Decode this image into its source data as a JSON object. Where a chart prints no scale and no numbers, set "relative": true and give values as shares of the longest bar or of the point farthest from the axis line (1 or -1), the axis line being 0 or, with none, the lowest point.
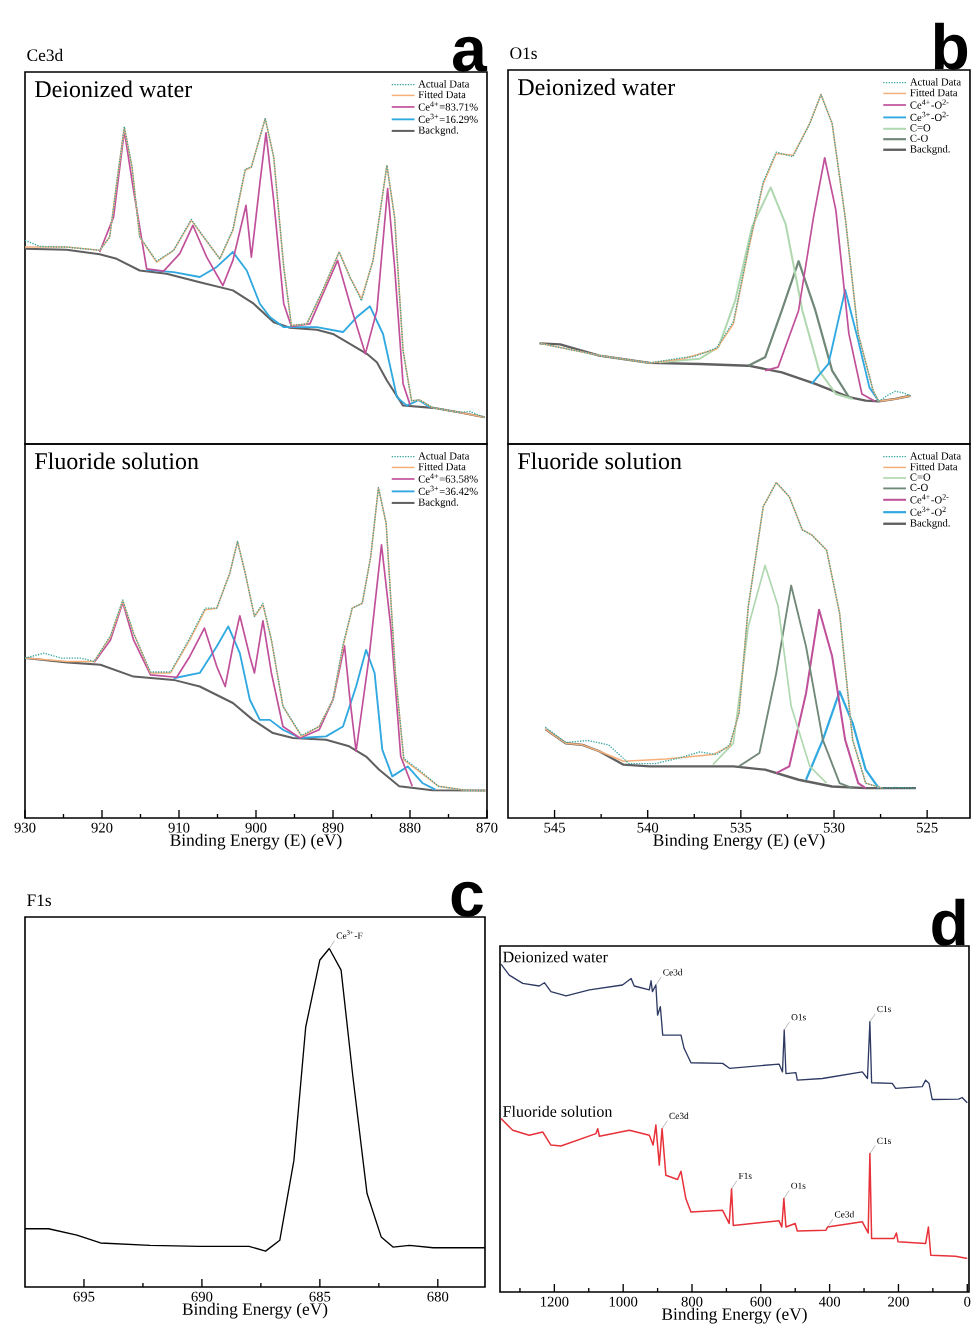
{
  "chart_data": [
    {
      "type": "line",
      "title": "Ce3d",
      "subtitle": "Deionized water",
      "annotations": [
        "a"
      ],
      "relative": true,
      "xlim": [
        930,
        870
      ],
      "tick_labels": false,
      "legend": "top right",
      "series": [
        {
          "name": "Actual Data",
          "color": "#3aa6a0",
          "line_style": "dotted",
          "x": [
            930,
            928.1,
            924.6,
            920.3,
            919,
            918.1,
            917.1,
            916.1,
            915.1,
            912.9,
            910.7,
            908.4,
            906.8,
            904.7,
            903,
            901.4,
            900.6,
            898.8,
            897.7,
            896.4,
            895.4,
            893.4,
            891.3,
            889.2,
            887.8,
            886.3,
            884.8,
            883,
            882,
            880.9,
            879.8,
            878.7,
            877,
            873.5,
            872.2,
            870.3
          ],
          "values": [
            0.626,
            0.607,
            0.605,
            0.595,
            0.636,
            0.8,
            0.975,
            0.851,
            0.636,
            0.562,
            0.595,
            0.69,
            0.636,
            0.569,
            0.66,
            0.845,
            0.851,
            1,
            0.882,
            0.544,
            0.364,
            0.369,
            0.475,
            0.59,
            0.513,
            0.44,
            0.564,
            0.856,
            0.697,
            0.287,
            0.133,
            0.135,
            0.111,
            0.097,
            0.1,
            0.082
          ]
        },
        {
          "name": "Fitted Data",
          "color": "#f5b07a",
          "x": [
            930,
            924.6,
            920.3,
            919,
            918.1,
            917.1,
            916.1,
            915.1,
            912.9,
            910.7,
            908.4,
            906.8,
            904.7,
            903,
            901.4,
            900.6,
            898.8,
            897.7,
            896.4,
            895.4,
            893.4,
            891.3,
            889.2,
            887.8,
            886.3,
            884.8,
            883,
            882,
            880.9,
            879.8,
            878.7,
            877,
            873.5,
            870.3
          ],
          "values": [
            0.605,
            0.605,
            0.595,
            0.636,
            0.8,
            0.972,
            0.851,
            0.636,
            0.559,
            0.595,
            0.687,
            0.636,
            0.569,
            0.656,
            0.841,
            0.851,
            1,
            0.882,
            0.544,
            0.364,
            0.369,
            0.472,
            0.59,
            0.513,
            0.446,
            0.564,
            0.856,
            0.697,
            0.287,
            0.133,
            0.135,
            0.111,
            0.097,
            0.082
          ]
        },
        {
          "name": "Ce$^{4+}$=83.71%",
          "color": "#c0509a",
          "x": [
            920.3,
            918.5,
            917.1,
            915.9,
            914.2,
            912,
            909.9,
            908.2,
            906.4,
            904.3,
            903,
            901.3,
            900.6,
            899.5,
            898.7,
            897.7,
            896.4,
            895.4,
            893,
            891.3,
            889.4,
            887.8,
            885.8,
            884.3,
            882.9,
            882,
            880.9,
            880
          ],
          "values": [
            0.59,
            0.697,
            0.962,
            0.779,
            0.538,
            0.531,
            0.585,
            0.672,
            0.574,
            0.487,
            0.564,
            0.733,
            0.574,
            0.8,
            0.956,
            0.749,
            0.431,
            0.361,
            0.369,
            0.462,
            0.564,
            0.431,
            0.277,
            0.41,
            0.785,
            0.544,
            0.185,
            0.121
          ]
        },
        {
          "name": "Ce$^{3+}$=16.29%",
          "color": "#30a8e0",
          "x": [
            914.2,
            910.7,
            907.3,
            905.1,
            903,
            901.2,
            899.5,
            898.2,
            896.4,
            892.1,
            888.7,
            886.9,
            885.2,
            883.5,
            881.7,
            880.4,
            878.9,
            877.4
          ],
          "values": [
            0.535,
            0.528,
            0.513,
            0.544,
            0.59,
            0.533,
            0.431,
            0.39,
            0.359,
            0.359,
            0.344,
            0.39,
            0.423,
            0.338,
            0.144,
            0.118,
            0.135,
            0.113
          ]
        },
        {
          "name": "Backgnd.",
          "color": "#606060",
          "x": [
            930,
            924.6,
            920.3,
            918.1,
            915.1,
            911.6,
            907.3,
            903,
            900.3,
            897.7,
            895.6,
            892.1,
            890,
            887.8,
            885.6,
            884.3,
            883,
            880.9,
            877,
            873.5,
            870.3
          ],
          "values": [
            0.6,
            0.597,
            0.583,
            0.569,
            0.533,
            0.523,
            0.497,
            0.472,
            0.431,
            0.374,
            0.357,
            0.351,
            0.338,
            0.308,
            0.277,
            0.251,
            0.195,
            0.118,
            0.111,
            0.097,
            0.082
          ]
        }
      ]
    },
    {
      "type": "line",
      "subtitle": "Fluoride solution",
      "xlabel": "Binding Energy (E) (eV)",
      "relative": true,
      "xlim": [
        930,
        870
      ],
      "xticks": [
        930,
        {
          "value": 925,
          "label": null
        },
        920,
        {
          "value": 915,
          "label": null
        },
        910,
        {
          "value": 905,
          "label": null
        },
        900,
        {
          "value": 895,
          "label": null
        },
        890,
        {
          "value": 885,
          "label": null
        },
        880,
        {
          "value": 875,
          "label": null
        },
        870
      ],
      "tick_labels": "x",
      "legend": "top right",
      "series": [
        {
          "name": "Actual Data",
          "color": "#3aa6a0",
          "line_style": "dotted",
          "x": [
            930,
            927.5,
            925.3,
            922.8,
            921,
            918.9,
            917.3,
            915.9,
            913.7,
            911.1,
            908.6,
            906.6,
            905.1,
            903.4,
            902.4,
            901.4,
            900.2,
            899.1,
            898,
            896.5,
            894.1,
            891.8,
            890,
            888.7,
            887.5,
            886.2,
            885.1,
            884.1,
            883.1,
            881.9,
            880.8,
            878.8,
            876.3,
            872.8,
            870.2
          ],
          "values": [
            0.484,
            0.499,
            0.484,
            0.484,
            0.474,
            0.552,
            0.66,
            0.559,
            0.442,
            0.442,
            0.545,
            0.635,
            0.635,
            0.741,
            0.837,
            0.741,
            0.61,
            0.65,
            0.539,
            0.338,
            0.25,
            0.277,
            0.358,
            0.525,
            0.635,
            0.65,
            0.791,
            1,
            0.892,
            0.439,
            0.18,
            0.145,
            0.096,
            0.084,
            0.083
          ]
        },
        {
          "name": "Fitted Data",
          "color": "#f5b07a",
          "x": [
            930,
            924.5,
            921,
            918.9,
            917.3,
            915.9,
            913.7,
            911.1,
            908.6,
            906.6,
            905.1,
            903.4,
            902.4,
            901.4,
            900.2,
            899.1,
            898,
            896.5,
            894.1,
            891.8,
            890,
            888.7,
            887.5,
            886.2,
            885.1,
            884.1,
            883.1,
            881.9,
            880.8,
            878.8,
            876.3,
            872.8,
            870.2
          ],
          "values": [
            0.484,
            0.474,
            0.474,
            0.549,
            0.657,
            0.559,
            0.439,
            0.439,
            0.539,
            0.63,
            0.635,
            0.741,
            0.837,
            0.741,
            0.61,
            0.645,
            0.539,
            0.338,
            0.247,
            0.277,
            0.358,
            0.519,
            0.635,
            0.65,
            0.791,
            1,
            0.892,
            0.439,
            0.176,
            0.141,
            0.096,
            0.084,
            0.083
          ]
        },
        {
          "name": "Ce$^{4+}$=63.58%",
          "color": "#c0509a",
          "x": [
            921,
            918.9,
            917.3,
            915.9,
            913.7,
            910.3,
            908.6,
            906.7,
            905.1,
            904,
            903,
            902.1,
            900.8,
            900.2,
            899.1,
            898,
            896.5,
            894.3,
            891.8,
            890,
            888.5,
            887.8,
            887,
            885.3,
            883.7,
            882.5,
            881.2,
            879.7
          ],
          "values": [
            0.471,
            0.539,
            0.652,
            0.539,
            0.433,
            0.426,
            0.489,
            0.575,
            0.459,
            0.398,
            0.519,
            0.612,
            0.489,
            0.439,
            0.597,
            0.439,
            0.277,
            0.242,
            0.267,
            0.358,
            0.521,
            0.36,
            0.202,
            0.489,
            0.827,
            0.58,
            0.186,
            0.096
          ]
        },
        {
          "name": "Ce$^{3+}$=36.42%",
          "color": "#30a8e0",
          "x": [
            910.7,
            907.3,
            905.1,
            903.6,
            902.1,
            900.8,
            899.5,
            898.2,
            896.5,
            894.3,
            890.9,
            888.7,
            887,
            885.7,
            884.6,
            883.6,
            882.3,
            880.3,
            878.4,
            876.7
          ],
          "values": [
            0.423,
            0.439,
            0.519,
            0.58,
            0.499,
            0.358,
            0.297,
            0.297,
            0.267,
            0.242,
            0.247,
            0.277,
            0.398,
            0.509,
            0.439,
            0.207,
            0.126,
            0.156,
            0.106,
            0.086
          ]
        },
        {
          "name": "Backgnd.",
          "color": "#606060",
          "x": [
            930,
            924.5,
            920.2,
            915.9,
            910.7,
            907.3,
            903,
            900.4,
            897.8,
            895.2,
            890.9,
            887.9,
            885.7,
            884,
            881.4,
            877.1,
            870.2
          ],
          "values": [
            0.484,
            0.471,
            0.464,
            0.428,
            0.418,
            0.398,
            0.348,
            0.297,
            0.257,
            0.242,
            0.237,
            0.217,
            0.186,
            0.146,
            0.096,
            0.084,
            0.083
          ]
        }
      ]
    },
    {
      "type": "line",
      "title": "O1s",
      "subtitle": "Deionized water",
      "annotations": [
        "b"
      ],
      "relative": true,
      "xlim": [
        547.5,
        522.7
      ],
      "tick_labels": false,
      "legend": "top right",
      "series": [
        {
          "name": "Actual Data",
          "color": "#3aa6a0",
          "line_style": "dotted",
          "x": [
            545.8,
            542.6,
            539.9,
            538.1,
            537.5,
            536.3,
            535.4,
            534.6,
            533.8,
            533.1,
            532.2,
            531.3,
            530.7,
            530.1,
            529.4,
            528.7,
            527.9,
            527.6,
            527.1,
            526.7,
            526.2,
            525.9
          ],
          "values": [
            0.288,
            0.253,
            0.232,
            0.247,
            0.25,
            0.275,
            0.35,
            0.56,
            0.75,
            0.835,
            0.822,
            0.917,
            1,
            0.917,
            0.649,
            0.315,
            0.153,
            0.122,
            0.14,
            0.151,
            0.145,
            0.138
          ]
        },
        {
          "name": "Fitted Data",
          "color": "#f5b07a",
          "x": [
            545.8,
            542.6,
            539.9,
            538.1,
            536.3,
            535.4,
            534.6,
            533.8,
            533.1,
            532.2,
            531.3,
            530.7,
            530.1,
            529.4,
            528.7,
            527.9,
            527.6,
            526.7,
            525.9
          ],
          "values": [
            0.288,
            0.253,
            0.232,
            0.244,
            0.272,
            0.344,
            0.554,
            0.745,
            0.831,
            0.826,
            0.917,
            1,
            0.917,
            0.649,
            0.315,
            0.153,
            0.122,
            0.129,
            0.138
          ]
        },
        {
          "name": "Ce$^{4+}$-O$^{2-}$",
          "color": "#c0509a",
          "x": [
            533.7,
            533,
            531.9,
            531.1,
            530.5,
            529.9,
            529.2,
            528.5,
            527.8
          ],
          "values": [
            0.21,
            0.22,
            0.382,
            0.649,
            0.819,
            0.669,
            0.315,
            0.143,
            0.122
          ]
        },
        {
          "name": "Ce$^{3+}$-O$^{2-}$",
          "color": "#30a8e0",
          "x": [
            531.2,
            530.3,
            529.4,
            528.7,
            528.1,
            527.6
          ],
          "values": [
            0.172,
            0.229,
            0.441,
            0.296,
            0.162,
            0.122
          ]
        },
        {
          "name": "C=O",
          "color": "#b0d8b0",
          "x": [
            539.4,
            537.2,
            536.2,
            535.3,
            534.4,
            533.4,
            532.6,
            531.7,
            530.8,
            529.9,
            529
          ],
          "values": [
            0.234,
            0.244,
            0.277,
            0.411,
            0.621,
            0.734,
            0.63,
            0.382,
            0.21,
            0.143,
            0.129
          ]
        },
        {
          "name": "C-O",
          "color": "#708878",
          "x": [
            534.6,
            533.7,
            532.8,
            531.9,
            531,
            530.1,
            529.2
          ],
          "values": [
            0.224,
            0.248,
            0.382,
            0.523,
            0.382,
            0.21,
            0.134
          ]
        },
        {
          "name": "Backgnd.",
          "color": "#606060",
          "x": [
            545.8,
            544.7,
            542.6,
            539.9,
            537.2,
            534.6,
            532.8,
            531,
            529.2,
            528.3,
            527.6,
            526.7,
            525.9
          ],
          "values": [
            0.288,
            0.285,
            0.253,
            0.232,
            0.229,
            0.224,
            0.205,
            0.172,
            0.134,
            0.124,
            0.122,
            0.129,
            0.138
          ]
        }
      ]
    },
    {
      "type": "line",
      "subtitle": "Fluoride solution",
      "xlabel": "Binding Energy (E) (eV)",
      "relative": true,
      "xlim": [
        547.5,
        522.7
      ],
      "xticks": [
        545,
        {
          "value": 542.5,
          "label": null
        },
        540,
        {
          "value": 537.5,
          "label": null
        },
        535,
        {
          "value": 532.5,
          "label": null
        },
        530,
        {
          "value": 527.5,
          "label": null
        },
        525
      ],
      "tick_labels": "x",
      "legend": "top right",
      "series": [
        {
          "name": "Actual Data",
          "color": "#3aa6a0",
          "line_style": "dotted",
          "x": [
            545.5,
            544.4,
            543.2,
            542.1,
            541,
            539.6,
            538.3,
            537.2,
            536.3,
            535.6,
            535.1,
            534.6,
            533.8,
            533.1,
            532.4,
            531.7,
            531.2,
            530.4,
            529.7,
            529,
            528.3,
            527.4,
            526.7,
            525.6
          ],
          "values": [
            0.271,
            0.225,
            0.231,
            0.218,
            0.162,
            0.162,
            0.179,
            0.197,
            0.189,
            0.218,
            0.313,
            0.631,
            0.928,
            1,
            0.958,
            0.859,
            0.844,
            0.799,
            0.611,
            0.233,
            0.104,
            0.089,
            0.091,
            0.089
          ]
        },
        {
          "name": "Fitted Data",
          "color": "#f5b07a",
          "x": [
            545.5,
            544.4,
            543.5,
            542.6,
            541.3,
            539,
            536.5,
            535.6,
            535.1,
            534.6,
            533.8,
            533.1,
            532.4,
            531.7,
            531.2,
            530.4,
            529.7,
            529,
            528.3,
            527.4
          ],
          "values": [
            0.265,
            0.223,
            0.218,
            0.199,
            0.169,
            0.176,
            0.189,
            0.214,
            0.313,
            0.631,
            0.928,
            1,
            0.958,
            0.859,
            0.844,
            0.799,
            0.611,
            0.233,
            0.104,
            0.089
          ]
        },
        {
          "name": "C=O",
          "color": "#b0d8b0",
          "x": [
            536.5,
            535.4,
            534.6,
            533.7,
            533,
            532.3,
            531.3,
            530.4
          ],
          "values": [
            0.159,
            0.223,
            0.571,
            0.753,
            0.631,
            0.333,
            0.154,
            0.104
          ]
        },
        {
          "name": "C-O",
          "color": "#708878",
          "x": [
            535.1,
            534,
            533.1,
            532.3,
            531.5,
            530.6,
            529.7,
            529
          ],
          "values": [
            0.154,
            0.194,
            0.432,
            0.693,
            0.511,
            0.233,
            0.104,
            0.089
          ]
        },
        {
          "name": "Ce$^{4+}$-O$^{2-}$",
          "color": "#c0509a",
          "x": [
            533.1,
            532.4,
            531.5,
            530.8,
            530.1,
            529.4,
            528.7,
            528.3
          ],
          "values": [
            0.134,
            0.154,
            0.372,
            0.621,
            0.482,
            0.233,
            0.104,
            0.089
          ]
        },
        {
          "name": "Ce$^{3+}$-O$^{2}$",
          "color": "#30a8e0",
          "x": [
            531.5,
            530.6,
            529.7,
            529,
            528.3,
            527.6
          ],
          "values": [
            0.114,
            0.233,
            0.377,
            0.283,
            0.144,
            0.089
          ]
        },
        {
          "name": "Backgnd.",
          "color": "#606060",
          "x": [
            545.5,
            544.4,
            543.5,
            542.6,
            541.3,
            539.9,
            535.4,
            533.7,
            531.9,
            530.1,
            528.3,
            525.6
          ],
          "values": [
            0.265,
            0.223,
            0.218,
            0.199,
            0.159,
            0.154,
            0.154,
            0.144,
            0.114,
            0.094,
            0.089,
            0.089
          ]
        }
      ]
    },
    {
      "type": "line",
      "title": "F1s",
      "xlabel": "Binding Energy (eV)",
      "relative": true,
      "xlim": [
        697.5,
        678
      ],
      "xticks": [
        695,
        {
          "value": 692.5,
          "label": null
        },
        690,
        {
          "value": 687.5,
          "label": null
        },
        685,
        {
          "value": 682.5,
          "label": null
        },
        680
      ],
      "tick_labels": "x",
      "annotations": [
        "c",
        {
          "text": "Ce$^{3+}$-F",
          "x": 684.6,
          "y": 1
        }
      ],
      "series": [
        {
          "color": "#000000",
          "x": [
            697.5,
            696.5,
            695.3,
            694.3,
            692.2,
            690.1,
            688,
            687.3,
            686.7,
            686.1,
            685.6,
            685,
            684.6,
            684.1,
            683.6,
            683,
            682.4,
            681.9,
            681.2,
            680.2,
            678
          ],
          "values": [
            0.172,
            0.172,
            0.153,
            0.13,
            0.123,
            0.12,
            0.12,
            0.106,
            0.138,
            0.374,
            0.768,
            0.966,
            1,
            0.936,
            0.621,
            0.276,
            0.148,
            0.118,
            0.123,
            0.116,
            0.116
          ]
        }
      ]
    },
    {
      "type": "line",
      "xlabel": "Binding Energy (eV)",
      "relative": true,
      "xlim": [
        1358,
        -5
      ],
      "xticks": [
        {
          "value": 1300,
          "label": null
        },
        1200,
        {
          "value": 1100,
          "label": null
        },
        1000,
        {
          "value": 900,
          "label": null
        },
        800,
        {
          "value": 700,
          "label": null
        },
        600,
        {
          "value": 500,
          "label": null
        },
        400,
        {
          "value": 300,
          "label": null
        },
        200,
        {
          "value": 100,
          "label": null
        },
        0
      ],
      "tick_labels": "x",
      "annotations": [
        "d",
        {
          "text": "Ce3d",
          "x": 905,
          "y": 0.936
        },
        {
          "text": "O1s",
          "x": 532,
          "y": 0.799
        },
        {
          "text": "C1s",
          "x": 283,
          "y": 0.824
        },
        {
          "text": "Ce3d",
          "x": 887,
          "y": 0.498
        },
        {
          "text": "F1s",
          "x": 685,
          "y": 0.315
        },
        {
          "text": "O1s",
          "x": 533,
          "y": 0.285
        },
        {
          "text": "Ce3d",
          "x": 406,
          "y": 0.198
        },
        {
          "text": "C1s",
          "x": 283,
          "y": 0.422
        }
      ],
      "series": [
        {
          "name": "Deionized water",
          "color": "#2e3a63",
          "x": [
            1355,
            1331,
            1292,
            1244,
            1229,
            1210,
            1166,
            1098,
            1002,
            977,
            968,
            924,
            919,
            915,
            905,
            900,
            892,
            885,
            832,
            823,
            803,
            711,
            691,
            547,
            537,
            532,
            527,
            498,
            494,
            421,
            305,
            290,
            283,
            278,
            218,
            208,
            131,
            121,
            111,
            102,
            25,
            15,
            0
          ],
          "values": [
            1,
            0.966,
            0.941,
            0.933,
            0.943,
            0.916,
            0.903,
            0.921,
            0.936,
            0.956,
            0.933,
            0.921,
            0.949,
            0.916,
            0.936,
            0.844,
            0.87,
            0.783,
            0.783,
            0.743,
            0.699,
            0.697,
            0.682,
            0.695,
            0.671,
            0.799,
            0.666,
            0.669,
            0.646,
            0.651,
            0.671,
            0.651,
            0.824,
            0.638,
            0.636,
            0.621,
            0.626,
            0.646,
            0.636,
            0.587,
            0.588,
            0.593,
            0.577
          ]
        },
        {
          "name": "Fluoride solution",
          "color": "#e8323a",
          "x": [
            1355,
            1321,
            1273,
            1234,
            1210,
            1181,
            1079,
            1074,
            1069,
            982,
            924,
            913,
            905,
            895,
            887,
            876,
            842,
            832,
            818,
            803,
            711,
            692,
            685,
            680,
            547,
            539,
            533,
            527,
            500,
            494,
            411,
            406,
            305,
            288,
            283,
            278,
            213,
            206,
            201,
            121,
            113,
            106,
            34,
            0
          ],
          "values": [
            0.529,
            0.493,
            0.478,
            0.488,
            0.448,
            0.445,
            0.483,
            0.498,
            0.475,
            0.493,
            0.478,
            0.448,
            0.509,
            0.387,
            0.498,
            0.356,
            0.343,
            0.368,
            0.285,
            0.244,
            0.249,
            0.209,
            0.315,
            0.203,
            0.217,
            0.198,
            0.285,
            0.198,
            0.209,
            0.186,
            0.188,
            0.198,
            0.214,
            0.18,
            0.422,
            0.163,
            0.163,
            0.18,
            0.153,
            0.148,
            0.198,
            0.112,
            0.109,
            0.102
          ]
        }
      ]
    }
  ]
}
